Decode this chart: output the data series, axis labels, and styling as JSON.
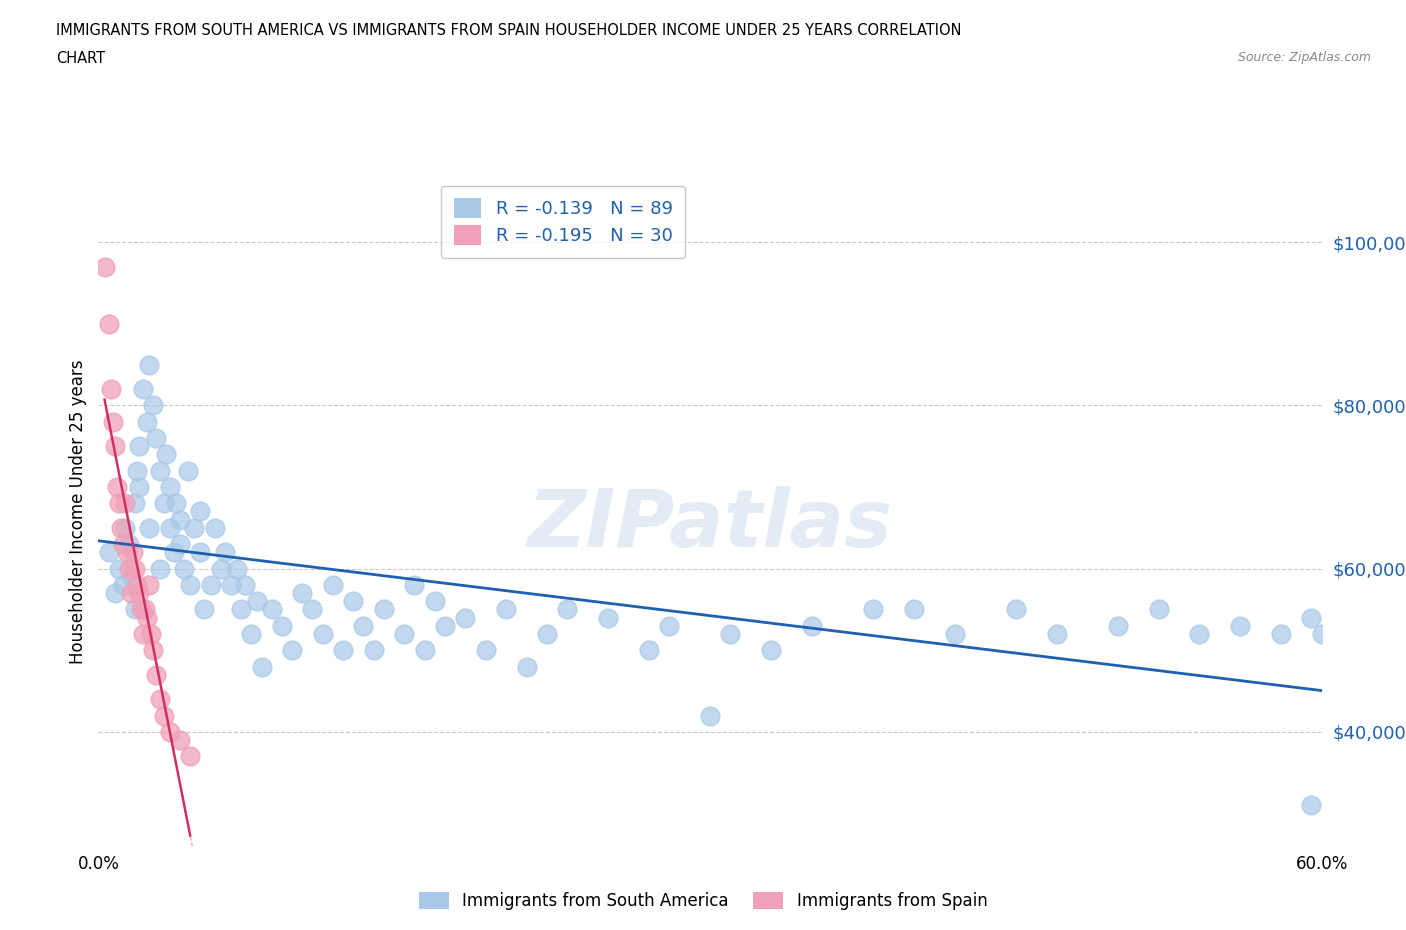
{
  "title_line1": "IMMIGRANTS FROM SOUTH AMERICA VS IMMIGRANTS FROM SPAIN HOUSEHOLDER INCOME UNDER 25 YEARS CORRELATION",
  "title_line2": "CHART",
  "source_text": "Source: ZipAtlas.com",
  "ylabel": "Householder Income Under 25 years",
  "r_south_america": -0.139,
  "n_south_america": 89,
  "r_spain": -0.195,
  "n_spain": 30,
  "xlim": [
    0.0,
    0.6
  ],
  "ylim": [
    26000,
    108000
  ],
  "yticks": [
    40000,
    60000,
    80000,
    100000
  ],
  "ytick_labels": [
    "$40,000",
    "$60,000",
    "$80,000",
    "$100,000"
  ],
  "xtick_positions": [
    0.0,
    0.1,
    0.2,
    0.3,
    0.4,
    0.5,
    0.6
  ],
  "xtick_labels": [
    "0.0%",
    "",
    "",
    "",
    "",
    "",
    "60.0%"
  ],
  "background_color": "#ffffff",
  "blue_color": "#a8c8e8",
  "pink_color": "#f0a0b8",
  "trend_blue": "#2060b0",
  "trend_pink": "#d03060",
  "watermark": "ZIPatlas",
  "south_america_x": [
    0.005,
    0.008,
    0.01,
    0.012,
    0.013,
    0.015,
    0.016,
    0.018,
    0.018,
    0.019,
    0.02,
    0.02,
    0.022,
    0.024,
    0.025,
    0.025,
    0.027,
    0.028,
    0.03,
    0.03,
    0.032,
    0.033,
    0.035,
    0.035,
    0.037,
    0.038,
    0.04,
    0.04,
    0.042,
    0.044,
    0.045,
    0.047,
    0.05,
    0.05,
    0.052,
    0.055,
    0.057,
    0.06,
    0.062,
    0.065,
    0.068,
    0.07,
    0.072,
    0.075,
    0.078,
    0.08,
    0.085,
    0.09,
    0.095,
    0.1,
    0.105,
    0.11,
    0.115,
    0.12,
    0.125,
    0.13,
    0.135,
    0.14,
    0.15,
    0.155,
    0.16,
    0.165,
    0.17,
    0.18,
    0.19,
    0.2,
    0.21,
    0.22,
    0.23,
    0.25,
    0.27,
    0.28,
    0.3,
    0.31,
    0.33,
    0.35,
    0.38,
    0.4,
    0.42,
    0.45,
    0.47,
    0.5,
    0.52,
    0.54,
    0.56,
    0.58,
    0.595,
    0.6,
    0.595
  ],
  "south_america_y": [
    62000,
    57000,
    60000,
    58000,
    65000,
    63000,
    59000,
    68000,
    55000,
    72000,
    75000,
    70000,
    82000,
    78000,
    85000,
    65000,
    80000,
    76000,
    72000,
    60000,
    68000,
    74000,
    70000,
    65000,
    62000,
    68000,
    63000,
    66000,
    60000,
    72000,
    58000,
    65000,
    67000,
    62000,
    55000,
    58000,
    65000,
    60000,
    62000,
    58000,
    60000,
    55000,
    58000,
    52000,
    56000,
    48000,
    55000,
    53000,
    50000,
    57000,
    55000,
    52000,
    58000,
    50000,
    56000,
    53000,
    50000,
    55000,
    52000,
    58000,
    50000,
    56000,
    53000,
    54000,
    50000,
    55000,
    48000,
    52000,
    55000,
    54000,
    50000,
    53000,
    42000,
    52000,
    50000,
    53000,
    55000,
    55000,
    52000,
    55000,
    52000,
    53000,
    55000,
    52000,
    53000,
    52000,
    54000,
    52000,
    31000
  ],
  "spain_x": [
    0.003,
    0.005,
    0.006,
    0.007,
    0.008,
    0.009,
    0.01,
    0.011,
    0.012,
    0.013,
    0.014,
    0.015,
    0.016,
    0.017,
    0.018,
    0.019,
    0.02,
    0.021,
    0.022,
    0.023,
    0.024,
    0.025,
    0.026,
    0.027,
    0.028,
    0.03,
    0.032,
    0.035,
    0.04,
    0.045
  ],
  "spain_y": [
    97000,
    90000,
    82000,
    78000,
    75000,
    70000,
    68000,
    65000,
    63000,
    68000,
    62000,
    60000,
    57000,
    62000,
    60000,
    58000,
    57000,
    55000,
    52000,
    55000,
    54000,
    58000,
    52000,
    50000,
    47000,
    44000,
    42000,
    40000,
    39000,
    37000
  ]
}
